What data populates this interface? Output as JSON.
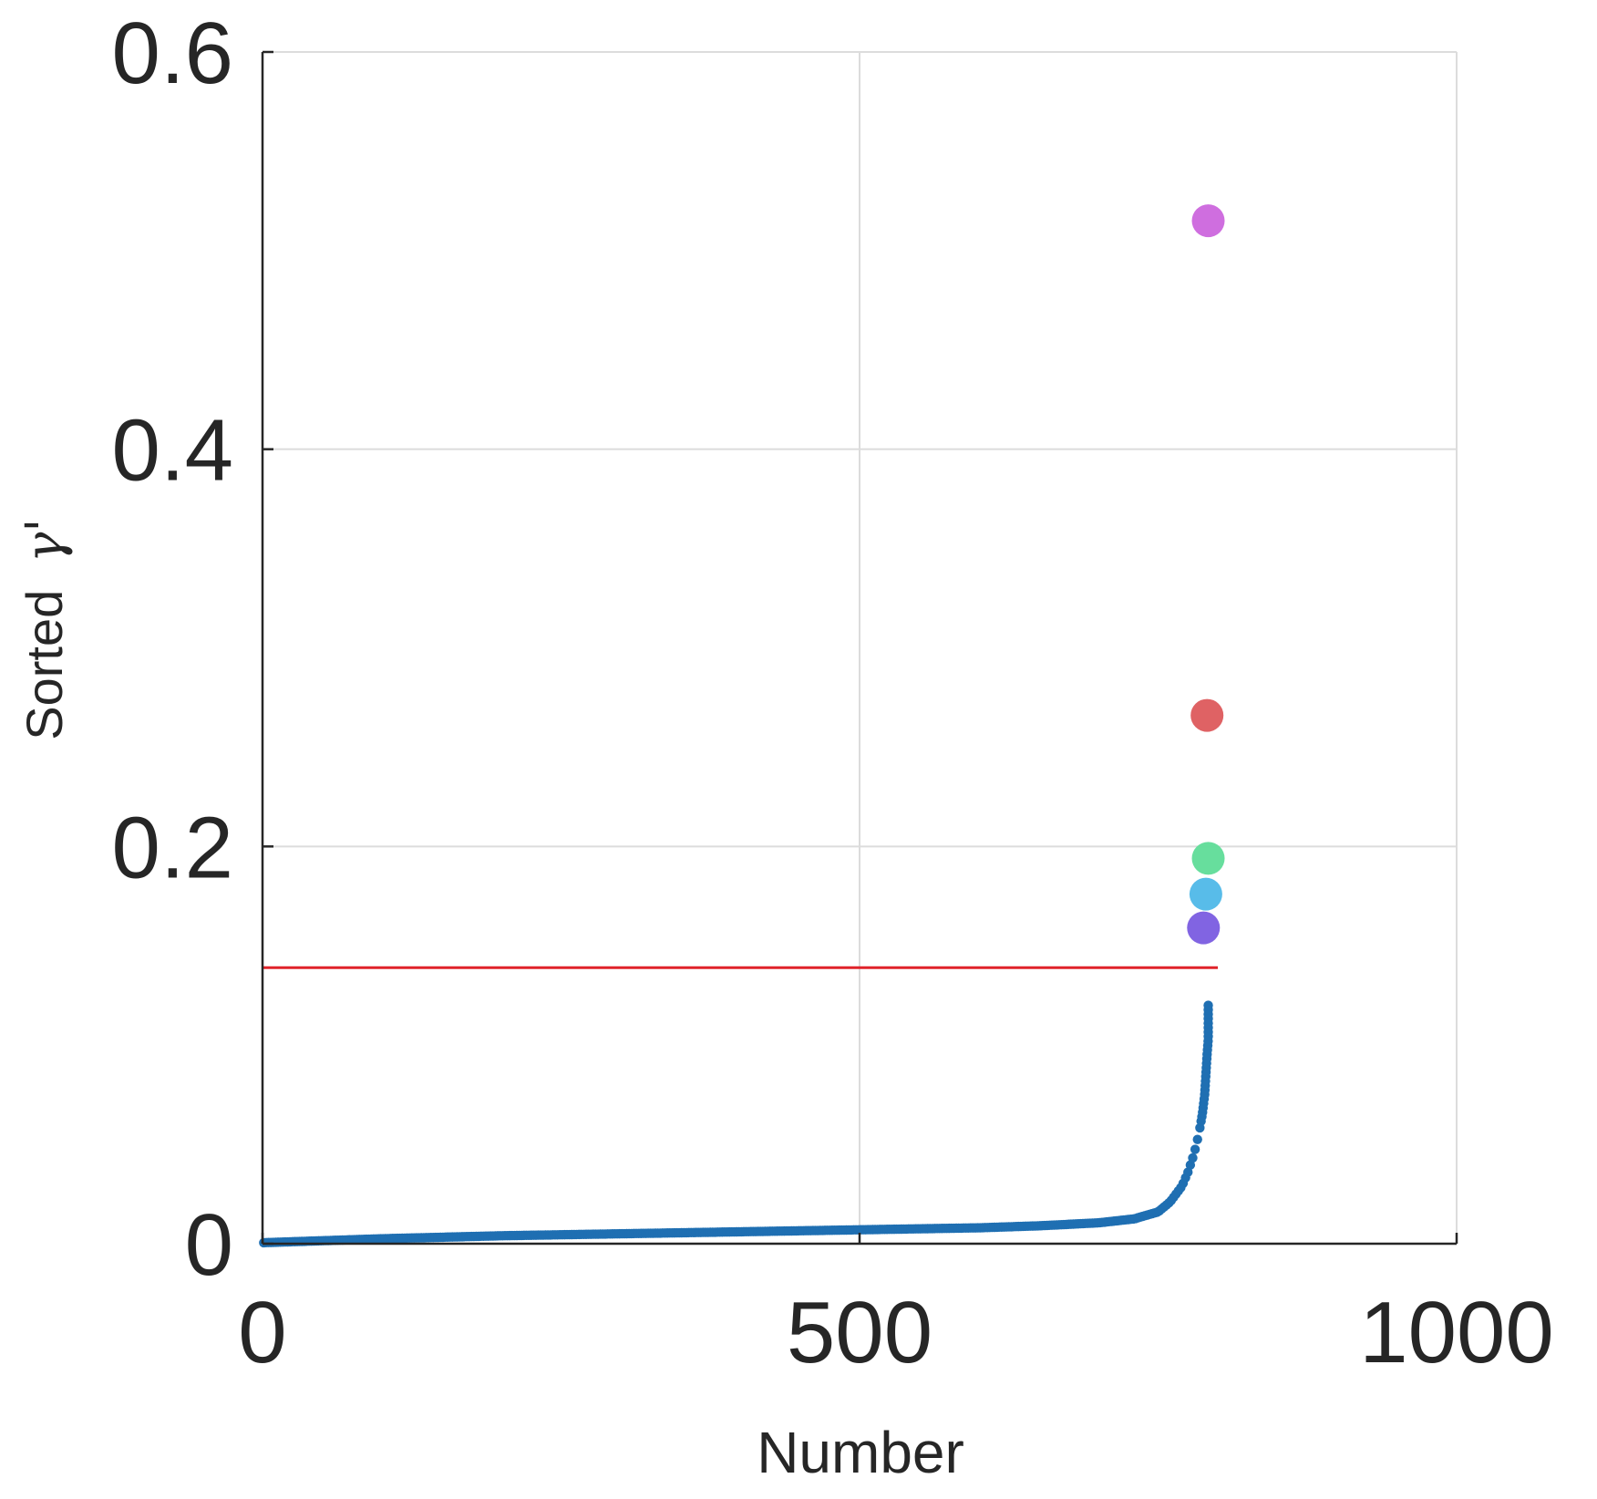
{
  "chart_data": {
    "type": "scatter",
    "xlabel": "Number",
    "ylabel": "Sorted",
    "ylabel_symbol": "γ'",
    "xlim": [
      0,
      1000
    ],
    "ylim": [
      0,
      0.6
    ],
    "xticks": [
      "0",
      "500",
      "1000"
    ],
    "yticks": [
      "0",
      "0.2",
      "0.4",
      "0.6"
    ],
    "grid": true,
    "threshold": {
      "y": 0.139,
      "x_start": 0,
      "x_end": 800,
      "color": "#e0232a"
    },
    "sorted_series": {
      "color": "#1f6fb2",
      "count": 792,
      "points": [
        [
          1,
          0.0005
        ],
        [
          50,
          0.0015
        ],
        [
          100,
          0.0025
        ],
        [
          200,
          0.004
        ],
        [
          300,
          0.005
        ],
        [
          400,
          0.006
        ],
        [
          500,
          0.007
        ],
        [
          600,
          0.008
        ],
        [
          650,
          0.009
        ],
        [
          700,
          0.0105
        ],
        [
          730,
          0.0125
        ],
        [
          750,
          0.016
        ],
        [
          760,
          0.021
        ],
        [
          770,
          0.029
        ],
        [
          775,
          0.036
        ],
        [
          780,
          0.045
        ],
        [
          784,
          0.055
        ],
        [
          787,
          0.065
        ],
        [
          789,
          0.075
        ],
        [
          790,
          0.085
        ],
        [
          791,
          0.095
        ],
        [
          792,
          0.103
        ],
        [
          792,
          0.11
        ],
        [
          792,
          0.12
        ]
      ]
    },
    "highlighted_points": [
      {
        "x": 788,
        "y": 0.159,
        "color": "#7a5ce0"
      },
      {
        "x": 790,
        "y": 0.176,
        "color": "#4fb8e8"
      },
      {
        "x": 792,
        "y": 0.194,
        "color": "#5fdc98"
      },
      {
        "x": 791,
        "y": 0.266,
        "color": "#dd5a5c"
      },
      {
        "x": 792,
        "y": 0.515,
        "color": "#cc66dd"
      }
    ]
  }
}
